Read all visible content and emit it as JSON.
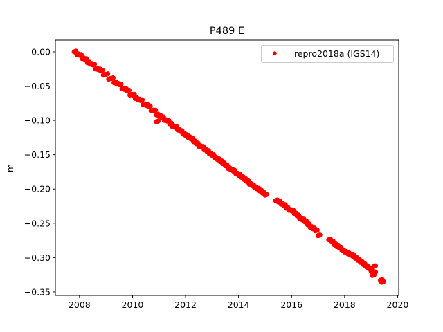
{
  "chart_data": {
    "type": "scatter",
    "title": "P489 E",
    "xlabel": "",
    "ylabel": "m",
    "xlim": [
      2007.09,
      2020.04
    ],
    "ylim": [
      -0.3551,
      0.0171
    ],
    "xticks": [
      2008,
      2010,
      2012,
      2014,
      2016,
      2018,
      2020
    ],
    "xtick_labels": [
      "2008",
      "2010",
      "2012",
      "2014",
      "2016",
      "2018",
      "2020"
    ],
    "yticks": [
      0,
      -0.05,
      -0.1,
      -0.15,
      -0.2,
      -0.25,
      -0.3,
      -0.35
    ],
    "ytick_labels": [
      "0.00",
      "−0.05",
      "−0.10",
      "−0.15",
      "−0.20",
      "−0.25",
      "−0.30",
      "−0.35"
    ],
    "grid": false,
    "legend_position": "top-right",
    "series": [
      {
        "name": "repro2018a (IGS14)",
        "color": "#ff0000",
        "marker": "dot",
        "x": [
          2007.8,
          2007.9,
          2008.0,
          2008.1,
          2008.2,
          2008.3,
          2008.4,
          2008.5,
          2008.6,
          2008.7,
          2008.8,
          2008.9,
          2009.0,
          2009.1,
          2009.2,
          2009.3,
          2009.4,
          2009.5,
          2009.6,
          2009.7,
          2009.8,
          2009.9,
          2010.0,
          2010.1,
          2010.2,
          2010.3,
          2010.4,
          2010.5,
          2010.6,
          2010.7,
          2010.8,
          2010.9,
          2010.9,
          2011.0,
          2011.1,
          2011.2,
          2011.3,
          2011.4,
          2011.5,
          2011.6,
          2011.7,
          2011.8,
          2011.9,
          2012.0,
          2012.1,
          2012.2,
          2012.3,
          2012.4,
          2012.5,
          2012.6,
          2012.7,
          2012.8,
          2012.9,
          2013.0,
          2013.1,
          2013.2,
          2013.3,
          2013.4,
          2013.5,
          2013.6,
          2013.7,
          2013.8,
          2013.9,
          2014.0,
          2014.1,
          2014.2,
          2014.3,
          2014.4,
          2014.5,
          2014.6,
          2014.7,
          2014.8,
          2014.9,
          2015.0,
          2015.4,
          2015.5,
          2015.6,
          2015.7,
          2015.8,
          2015.9,
          2016.0,
          2016.1,
          2016.2,
          2016.3,
          2016.4,
          2016.5,
          2016.6,
          2016.7,
          2016.8,
          2016.9,
          2017.0,
          2017.4,
          2017.5,
          2017.6,
          2017.7,
          2017.8,
          2017.9,
          2018.0,
          2018.1,
          2018.2,
          2018.3,
          2018.4,
          2018.5,
          2018.6,
          2018.7,
          2018.8,
          2018.9,
          2019.0,
          2019.05,
          2019.1,
          2019.1,
          2019.35,
          2019.4
        ],
        "y": [
          0.0,
          -0.004,
          -0.005,
          -0.01,
          -0.011,
          -0.016,
          -0.018,
          -0.019,
          -0.025,
          -0.026,
          -0.028,
          -0.034,
          -0.033,
          -0.04,
          -0.039,
          -0.045,
          -0.047,
          -0.048,
          -0.054,
          -0.055,
          -0.057,
          -0.063,
          -0.063,
          -0.068,
          -0.07,
          -0.071,
          -0.077,
          -0.078,
          -0.08,
          -0.086,
          -0.086,
          -0.092,
          -0.102,
          -0.094,
          -0.096,
          -0.1,
          -0.101,
          -0.105,
          -0.109,
          -0.11,
          -0.114,
          -0.116,
          -0.12,
          -0.122,
          -0.125,
          -0.127,
          -0.131,
          -0.134,
          -0.138,
          -0.139,
          -0.143,
          -0.145,
          -0.149,
          -0.151,
          -0.155,
          -0.157,
          -0.16,
          -0.163,
          -0.166,
          -0.17,
          -0.172,
          -0.174,
          -0.178,
          -0.18,
          -0.183,
          -0.186,
          -0.189,
          -0.193,
          -0.195,
          -0.198,
          -0.2,
          -0.203,
          -0.206,
          -0.209,
          -0.217,
          -0.219,
          -0.222,
          -0.224,
          -0.228,
          -0.231,
          -0.232,
          -0.236,
          -0.239,
          -0.243,
          -0.245,
          -0.248,
          -0.252,
          -0.256,
          -0.258,
          -0.261,
          -0.268,
          -0.274,
          -0.277,
          -0.281,
          -0.284,
          -0.286,
          -0.29,
          -0.292,
          -0.294,
          -0.296,
          -0.298,
          -0.301,
          -0.304,
          -0.307,
          -0.31,
          -0.313,
          -0.316,
          -0.32,
          -0.326,
          -0.313,
          -0.322,
          -0.333,
          -0.336
        ]
      }
    ]
  }
}
